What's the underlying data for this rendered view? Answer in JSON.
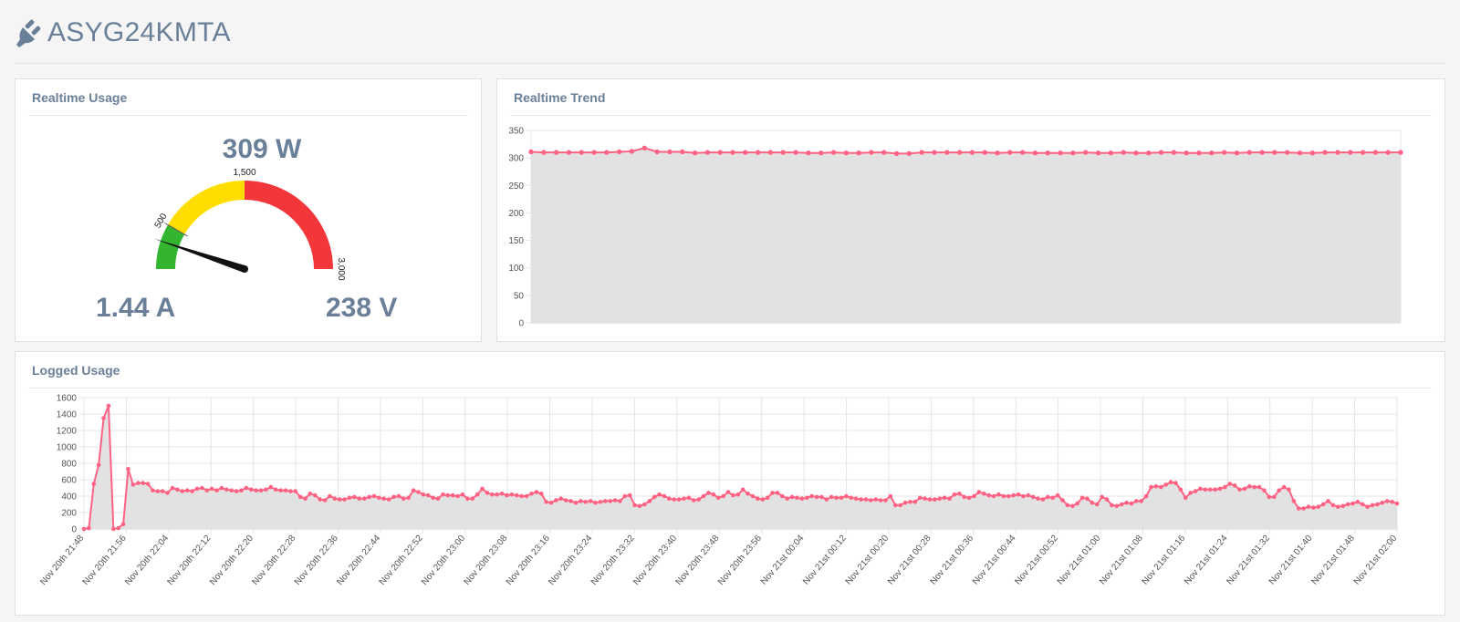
{
  "device": {
    "name": "ASYG24KMTA"
  },
  "realtime": {
    "title": "Realtime Usage",
    "power": "309 W",
    "current": "1.44 A",
    "voltage": "238 V",
    "gauge": {
      "min": 0,
      "max": 3000,
      "value": 309,
      "ticks": [
        "500",
        "1,500",
        "3,000"
      ],
      "bands": [
        {
          "from": 0,
          "to": 500,
          "color": "#33b52f"
        },
        {
          "from": 500,
          "to": 1500,
          "color": "#ffdd00"
        },
        {
          "from": 1500,
          "to": 3000,
          "color": "#f2363a"
        }
      ]
    }
  },
  "trend": {
    "title": "Realtime Trend",
    "chart_data": {
      "type": "area",
      "title": "",
      "ylim": [
        0,
        350
      ],
      "yticks": [
        "350",
        "300",
        "250",
        "200",
        "150",
        "100",
        "50",
        "0"
      ],
      "grid": true,
      "line_color": "#ff6384",
      "fill_color": "#e2e2e2",
      "values": [
        311,
        310,
        310,
        310,
        310,
        310,
        310,
        311,
        312,
        318,
        311,
        311,
        311,
        309,
        310,
        310,
        310,
        310,
        310,
        310,
        310,
        310,
        309,
        309,
        310,
        309,
        309,
        310,
        310,
        308,
        308,
        310,
        310,
        310,
        310,
        310,
        310,
        309,
        310,
        310,
        309,
        309,
        309,
        309,
        310,
        309,
        309,
        310,
        309,
        309,
        310,
        310,
        309,
        309,
        309,
        310,
        309,
        310,
        310,
        310,
        310,
        309,
        309,
        310,
        310,
        310,
        310,
        310,
        310,
        310
      ]
    }
  },
  "logged": {
    "title": "Logged Usage",
    "chart_data": {
      "type": "area",
      "title": "",
      "ylim": [
        0,
        1600
      ],
      "yticks": [
        "1600",
        "1400",
        "1200",
        "1000",
        "800",
        "600",
        "400",
        "200",
        "0"
      ],
      "grid": true,
      "line_color": "#ff6384",
      "fill_color": "#e2e2e2",
      "x_labels": [
        "Nov 20th 21:48",
        "Nov 20th 21:56",
        "Nov 20th 22:04",
        "Nov 20th 22:12",
        "Nov 20th 22:20",
        "Nov 20th 22:28",
        "Nov 20th 22:36",
        "Nov 20th 22:44",
        "Nov 20th 22:52",
        "Nov 20th 23:00",
        "Nov 20th 23:08",
        "Nov 20th 23:16",
        "Nov 20th 23:24",
        "Nov 20th 23:32",
        "Nov 20th 23:40",
        "Nov 20th 23:48",
        "Nov 20th 23:56",
        "Nov 21st 00:04",
        "Nov 21st 00:12",
        "Nov 21st 00:20",
        "Nov 21st 00:28",
        "Nov 21st 00:36",
        "Nov 21st 00:44",
        "Nov 21st 00:52",
        "Nov 21st 01:00",
        "Nov 21st 01:08",
        "Nov 21st 01:16",
        "Nov 21st 01:24",
        "Nov 21st 01:32",
        "Nov 21st 01:40",
        "Nov 21st 01:48",
        "Nov 21st 02:00"
      ],
      "values": [
        0,
        10,
        550,
        780,
        1350,
        1500,
        0,
        10,
        60,
        730,
        540,
        560,
        560,
        550,
        470,
        460,
        460,
        440,
        500,
        480,
        460,
        470,
        460,
        490,
        500,
        470,
        490,
        470,
        500,
        480,
        470,
        460,
        470,
        500,
        480,
        470,
        470,
        480,
        510,
        480,
        470,
        470,
        460,
        460,
        390,
        370,
        430,
        410,
        360,
        350,
        400,
        370,
        360,
        360,
        380,
        390,
        370,
        370,
        390,
        400,
        380,
        370,
        360,
        390,
        400,
        370,
        380,
        470,
        450,
        420,
        410,
        380,
        370,
        420,
        410,
        410,
        400,
        420,
        370,
        370,
        420,
        490,
        440,
        420,
        420,
        430,
        410,
        420,
        410,
        400,
        400,
        430,
        450,
        430,
        330,
        320,
        350,
        370,
        350,
        340,
        320,
        340,
        330,
        340,
        320,
        330,
        340,
        340,
        350,
        340,
        400,
        410,
        290,
        280,
        300,
        340,
        390,
        420,
        400,
        370,
        360,
        360,
        370,
        380,
        350,
        360,
        400,
        440,
        420,
        380,
        400,
        450,
        410,
        420,
        480,
        430,
        400,
        370,
        360,
        380,
        440,
        440,
        400,
        370,
        390,
        380,
        370,
        380,
        400,
        390,
        390,
        360,
        390,
        380,
        380,
        400,
        380,
        370,
        360,
        360,
        350,
        360,
        350,
        350,
        400,
        290,
        290,
        320,
        330,
        330,
        380,
        370,
        360,
        360,
        370,
        380,
        370,
        420,
        430,
        390,
        380,
        400,
        450,
        430,
        410,
        400,
        420,
        400,
        400,
        410,
        420,
        400,
        410,
        390,
        370,
        360,
        390,
        380,
        410,
        350,
        290,
        280,
        310,
        380,
        370,
        320,
        300,
        390,
        360,
        290,
        280,
        300,
        320,
        310,
        340,
        340,
        400,
        510,
        520,
        510,
        540,
        570,
        560,
        480,
        380,
        440,
        460,
        490,
        480,
        480,
        480,
        490,
        510,
        550,
        530,
        480,
        490,
        520,
        510,
        510,
        470,
        390,
        390,
        470,
        510,
        480,
        340,
        250,
        250,
        270,
        260,
        270,
        300,
        340,
        290,
        270,
        280,
        300,
        310,
        330,
        300,
        270,
        290,
        300,
        320,
        340,
        330,
        310
      ]
    }
  }
}
